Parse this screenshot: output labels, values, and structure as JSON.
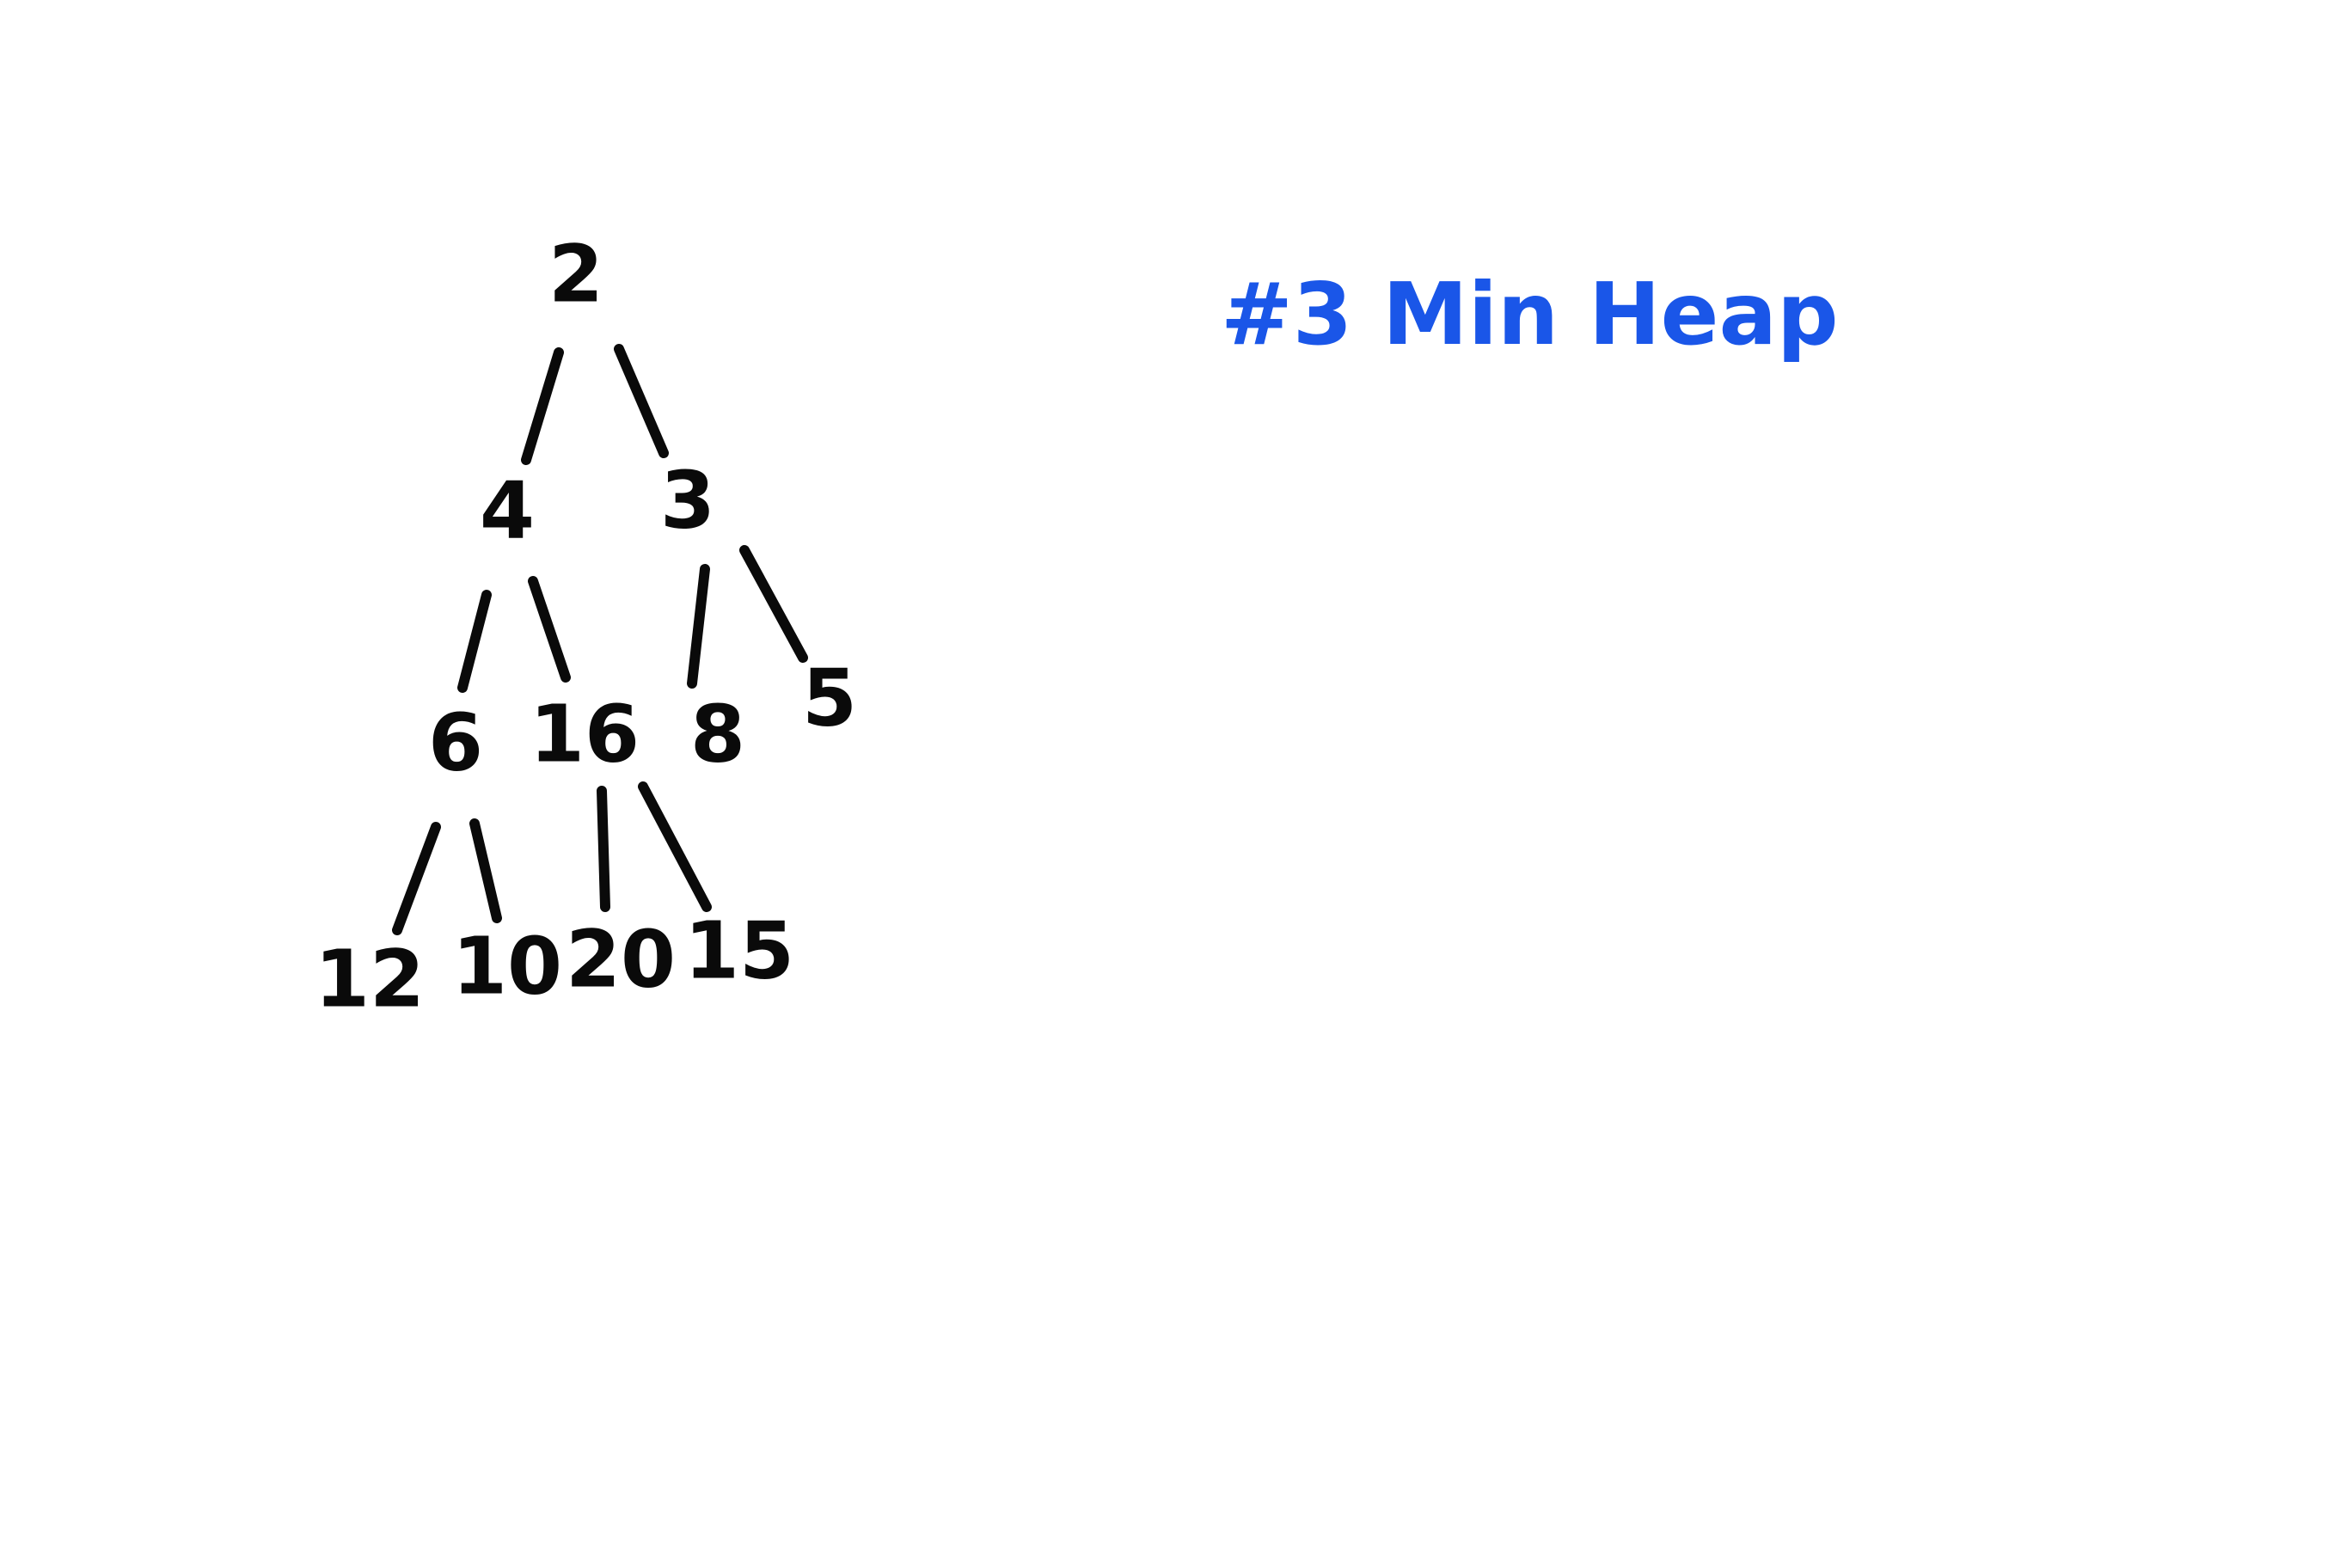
{
  "title": "#3 Min Heap",
  "colors": {
    "ink": "#0a0a0a",
    "title": "#1a56e8",
    "background": "#ffffff"
  },
  "heap": {
    "nodes": [
      {
        "id": "n2",
        "label": "2"
      },
      {
        "id": "n4",
        "label": "4"
      },
      {
        "id": "n3",
        "label": "3"
      },
      {
        "id": "n6",
        "label": "6"
      },
      {
        "id": "n16",
        "label": "16"
      },
      {
        "id": "n8",
        "label": "8"
      },
      {
        "id": "n5",
        "label": "5"
      },
      {
        "id": "n12",
        "label": "12"
      },
      {
        "id": "n10",
        "label": "10"
      },
      {
        "id": "n20",
        "label": "20"
      },
      {
        "id": "n15",
        "label": "15"
      }
    ],
    "edges": [
      {
        "from": "n2",
        "to": "n4"
      },
      {
        "from": "n2",
        "to": "n3"
      },
      {
        "from": "n4",
        "to": "n6"
      },
      {
        "from": "n4",
        "to": "n16"
      },
      {
        "from": "n3",
        "to": "n8"
      },
      {
        "from": "n3",
        "to": "n5"
      },
      {
        "from": "n6",
        "to": "n12"
      },
      {
        "from": "n6",
        "to": "n10"
      },
      {
        "from": "n16",
        "to": "n20"
      },
      {
        "from": "n16",
        "to": "n15"
      }
    ]
  }
}
